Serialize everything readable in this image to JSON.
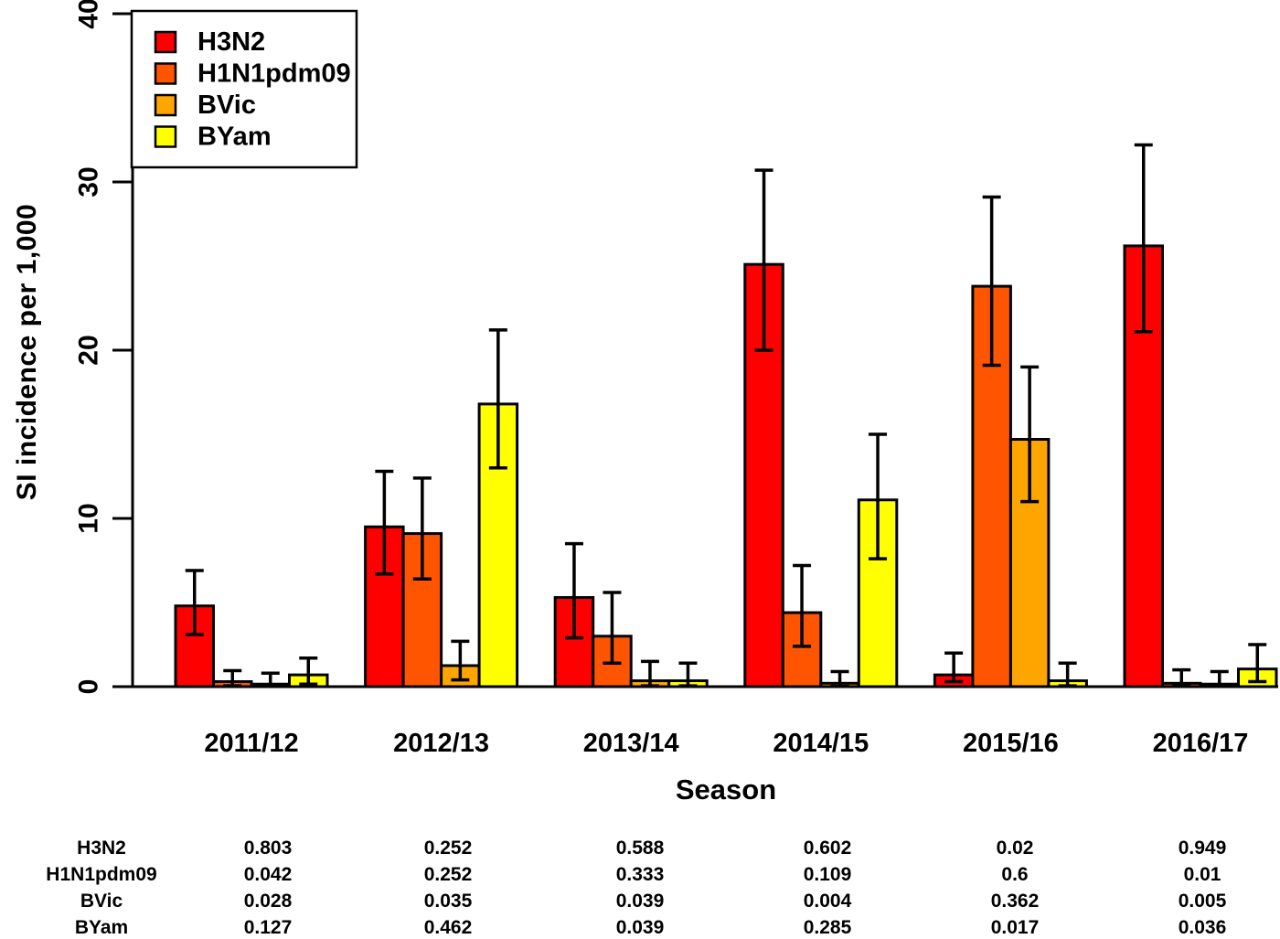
{
  "chart_data": {
    "type": "bar",
    "title": "",
    "xlabel": "Season",
    "ylabel": "SI incidence per 1,000",
    "ylim": [
      0,
      40
    ],
    "yticks": [
      0,
      10,
      20,
      30,
      40
    ],
    "grid": false,
    "legend_position": "top-left",
    "error_bars": true,
    "categories": [
      "2011/12",
      "2012/13",
      "2013/14",
      "2014/15",
      "2015/16",
      "2016/17"
    ],
    "series": [
      {
        "name": "H3N2",
        "color": "#FF0000",
        "values": [
          4.8,
          9.5,
          5.3,
          25.1,
          0.7,
          26.2
        ],
        "ci_low": [
          3.1,
          6.7,
          2.9,
          20.0,
          0.3,
          21.1
        ],
        "ci_high": [
          6.9,
          12.8,
          8.5,
          30.7,
          2.0,
          32.2
        ]
      },
      {
        "name": "H1N1pdm09",
        "color": "#FF5500",
        "values": [
          0.3,
          9.1,
          3.0,
          4.4,
          23.8,
          0.2
        ],
        "ci_low": [
          0.05,
          6.4,
          1.4,
          2.4,
          19.1,
          0.05
        ],
        "ci_high": [
          0.95,
          12.4,
          5.6,
          7.2,
          29.1,
          1.0
        ]
      },
      {
        "name": "BVic",
        "color": "#FFA500",
        "values": [
          0.15,
          1.25,
          0.35,
          0.2,
          14.7,
          0.15
        ],
        "ci_low": [
          0.02,
          0.4,
          0.05,
          0.02,
          11.0,
          0.02
        ],
        "ci_high": [
          0.8,
          2.7,
          1.5,
          0.9,
          19.0,
          0.9
        ]
      },
      {
        "name": "BYam",
        "color": "#FFFF00",
        "values": [
          0.7,
          16.8,
          0.35,
          11.1,
          0.35,
          1.05
        ],
        "ci_low": [
          0.15,
          13.0,
          0.05,
          7.6,
          0.05,
          0.3
        ],
        "ci_high": [
          1.7,
          21.2,
          1.4,
          15.0,
          1.4,
          2.5
        ]
      }
    ]
  },
  "table": {
    "rows": [
      {
        "label": "H3N2",
        "values": [
          "0.803",
          "0.252",
          "0.588",
          "0.602",
          "0.02",
          "0.949"
        ]
      },
      {
        "label": "H1N1pdm09",
        "values": [
          "0.042",
          "0.252",
          "0.333",
          "0.109",
          "0.6",
          "0.01"
        ]
      },
      {
        "label": "BVic",
        "values": [
          "0.028",
          "0.035",
          "0.039",
          "0.004",
          "0.362",
          "0.005"
        ]
      },
      {
        "label": "BYam",
        "values": [
          "0.127",
          "0.462",
          "0.039",
          "0.285",
          "0.017",
          "0.036"
        ]
      }
    ]
  }
}
